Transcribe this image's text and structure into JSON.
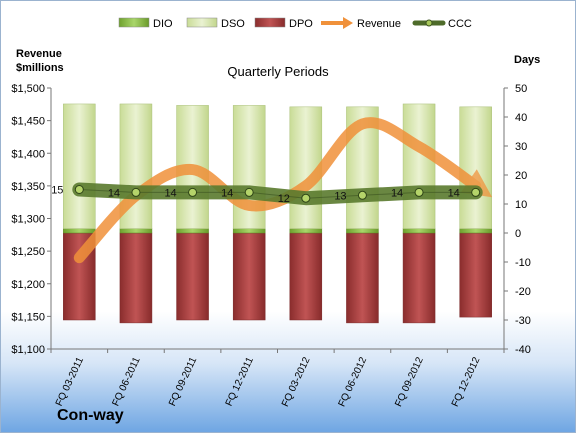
{
  "company": "Con-way",
  "chart_data": {
    "type": "bar",
    "title": "Quarterly Periods",
    "left_axis_title": [
      "Revenue",
      "$millions"
    ],
    "right_axis_title": "Days",
    "categories": [
      "FQ 03-2011",
      "FQ 06-2011",
      "FQ 09-2011",
      "FQ 12-2011",
      "FQ 03-2012",
      "FQ 06-2012",
      "FQ 09-2012",
      "FQ 12-2012"
    ],
    "left_ticks": [
      "$1,100",
      "$1,150",
      "$1,200",
      "$1,250",
      "$1,300",
      "$1,350",
      "$1,400",
      "$1,450",
      "$1,500"
    ],
    "left_range": [
      1100,
      1500
    ],
    "right_ticks": [
      "-40",
      "-30",
      "-20",
      "-10",
      "0",
      "10",
      "20",
      "30",
      "40",
      "50"
    ],
    "right_range": [
      -40,
      50
    ],
    "legend": [
      {
        "name": "DIO",
        "kind": "bar",
        "color": "#8dc63f"
      },
      {
        "name": "DSO",
        "kind": "bar",
        "color": "#d7e4b2"
      },
      {
        "name": "DPO",
        "kind": "bar",
        "color": "#a23b3b"
      },
      {
        "name": "Revenue",
        "kind": "arrow",
        "color": "#f0913a"
      },
      {
        "name": "CCC",
        "kind": "line-marker",
        "color": "#4e6b2a"
      }
    ],
    "dio": [
      1.5,
      1.5,
      1.5,
      1.5,
      1.5,
      1.5,
      1.5,
      1.5
    ],
    "dso": [
      43,
      43,
      42.5,
      42.5,
      42,
      42,
      43,
      42
    ],
    "dpo": [
      -30,
      -31,
      -30,
      -30,
      -30,
      -31,
      -31,
      -29
    ],
    "ccc": [
      15,
      14,
      14,
      14,
      12,
      13,
      14,
      14
    ],
    "ccc_labels": [
      "15",
      "14",
      "14",
      "14",
      "12",
      "13",
      "14",
      "14"
    ],
    "revenue": [
      1240,
      1335,
      1375,
      1320,
      1350,
      1445,
      1410,
      1350
    ],
    "legend_position": "top"
  }
}
